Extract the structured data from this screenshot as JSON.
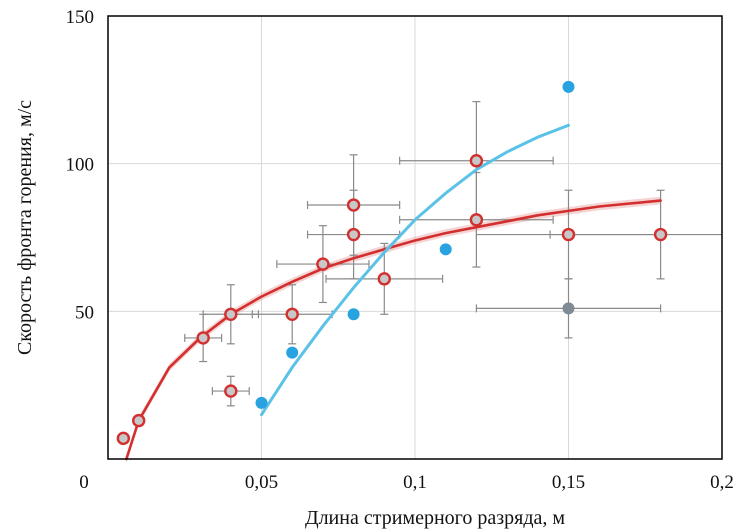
{
  "chart_data": {
    "type": "scatter",
    "xlabel": "Длина стримерного разряда, м",
    "ylabel": "Скорость фронта горения, м/с",
    "xlim": [
      0,
      0.2
    ],
    "ylim": [
      0,
      150
    ],
    "grid": true,
    "x_ticks": [
      {
        "value": 0,
        "label": "0"
      },
      {
        "value": 0.05,
        "label": "0,05"
      },
      {
        "value": 0.1,
        "label": "0,1"
      },
      {
        "value": 0.15,
        "label": "0,15"
      },
      {
        "value": 0.2,
        "label": "0,2"
      }
    ],
    "y_ticks": [
      {
        "value": 50,
        "label": "50"
      },
      {
        "value": 100,
        "label": "100"
      },
      {
        "value": 150,
        "label": "150"
      }
    ],
    "colors": {
      "red_series": "#d32f2f",
      "red_fill": "#c8c8c8",
      "blue_series": "#29a3e0",
      "blue_curve": "#5bc2e7",
      "gray_point": "#7f8b95",
      "error_bar": "#8a8a8a",
      "grid": "#d9d9d9"
    },
    "series": [
      {
        "marker": "red-ringed-circle",
        "points": [
          {
            "x": 0.005,
            "y": 7
          },
          {
            "x": 0.01,
            "y": 13
          },
          {
            "x": 0.031,
            "y": 41,
            "xerr": 0.006,
            "yerr": 8
          },
          {
            "x": 0.04,
            "y": 49,
            "xerr": 0.009,
            "yerr": 10
          },
          {
            "x": 0.04,
            "y": 23,
            "xerr": 0.006,
            "yerr": 5
          },
          {
            "x": 0.06,
            "y": 49,
            "xerr": 0.013,
            "yerr": 10
          },
          {
            "x": 0.07,
            "y": 66,
            "xerr": 0.015,
            "yerr": 13
          },
          {
            "x": 0.08,
            "y": 86,
            "xerr": 0.015,
            "yerr": 17
          },
          {
            "x": 0.08,
            "y": 76,
            "xerr": 0.015,
            "yerr": 15
          },
          {
            "x": 0.09,
            "y": 61,
            "xerr": 0.019,
            "yerr": 12
          },
          {
            "x": 0.12,
            "y": 101,
            "xerr": 0.025,
            "yerr": 20
          },
          {
            "x": 0.12,
            "y": 81,
            "xerr": 0.025,
            "yerr": 16
          },
          {
            "x": 0.15,
            "y": 76,
            "xerr": 0.03,
            "yerr": 15
          },
          {
            "x": 0.18,
            "y": 76,
            "xerr": 0.036,
            "yerr": 15
          }
        ],
        "fit": [
          [
            0.006,
            0
          ],
          [
            0.01,
            13
          ],
          [
            0.02,
            31
          ],
          [
            0.03,
            41
          ],
          [
            0.04,
            49
          ],
          [
            0.05,
            55
          ],
          [
            0.06,
            60
          ],
          [
            0.07,
            64.5
          ],
          [
            0.08,
            68
          ],
          [
            0.09,
            71
          ],
          [
            0.1,
            74
          ],
          [
            0.11,
            76.5
          ],
          [
            0.12,
            78.5
          ],
          [
            0.13,
            80.5
          ],
          [
            0.14,
            82.5
          ],
          [
            0.15,
            84
          ],
          [
            0.16,
            85.5
          ],
          [
            0.17,
            86.5
          ],
          [
            0.18,
            87.5
          ]
        ]
      },
      {
        "marker": "blue-dot",
        "points": [
          {
            "x": 0.05,
            "y": 19
          },
          {
            "x": 0.06,
            "y": 36
          },
          {
            "x": 0.08,
            "y": 49
          },
          {
            "x": 0.11,
            "y": 71
          },
          {
            "x": 0.15,
            "y": 126
          }
        ],
        "fit": [
          [
            0.05,
            15
          ],
          [
            0.06,
            31
          ],
          [
            0.07,
            45
          ],
          [
            0.08,
            58
          ],
          [
            0.09,
            70
          ],
          [
            0.1,
            81
          ],
          [
            0.11,
            90
          ],
          [
            0.12,
            98
          ],
          [
            0.13,
            104
          ],
          [
            0.14,
            109
          ],
          [
            0.15,
            113
          ]
        ]
      },
      {
        "marker": "gray-dot",
        "points": [
          {
            "x": 0.15,
            "y": 51,
            "xerr": 0.03,
            "yerr": 10
          }
        ]
      }
    ]
  }
}
